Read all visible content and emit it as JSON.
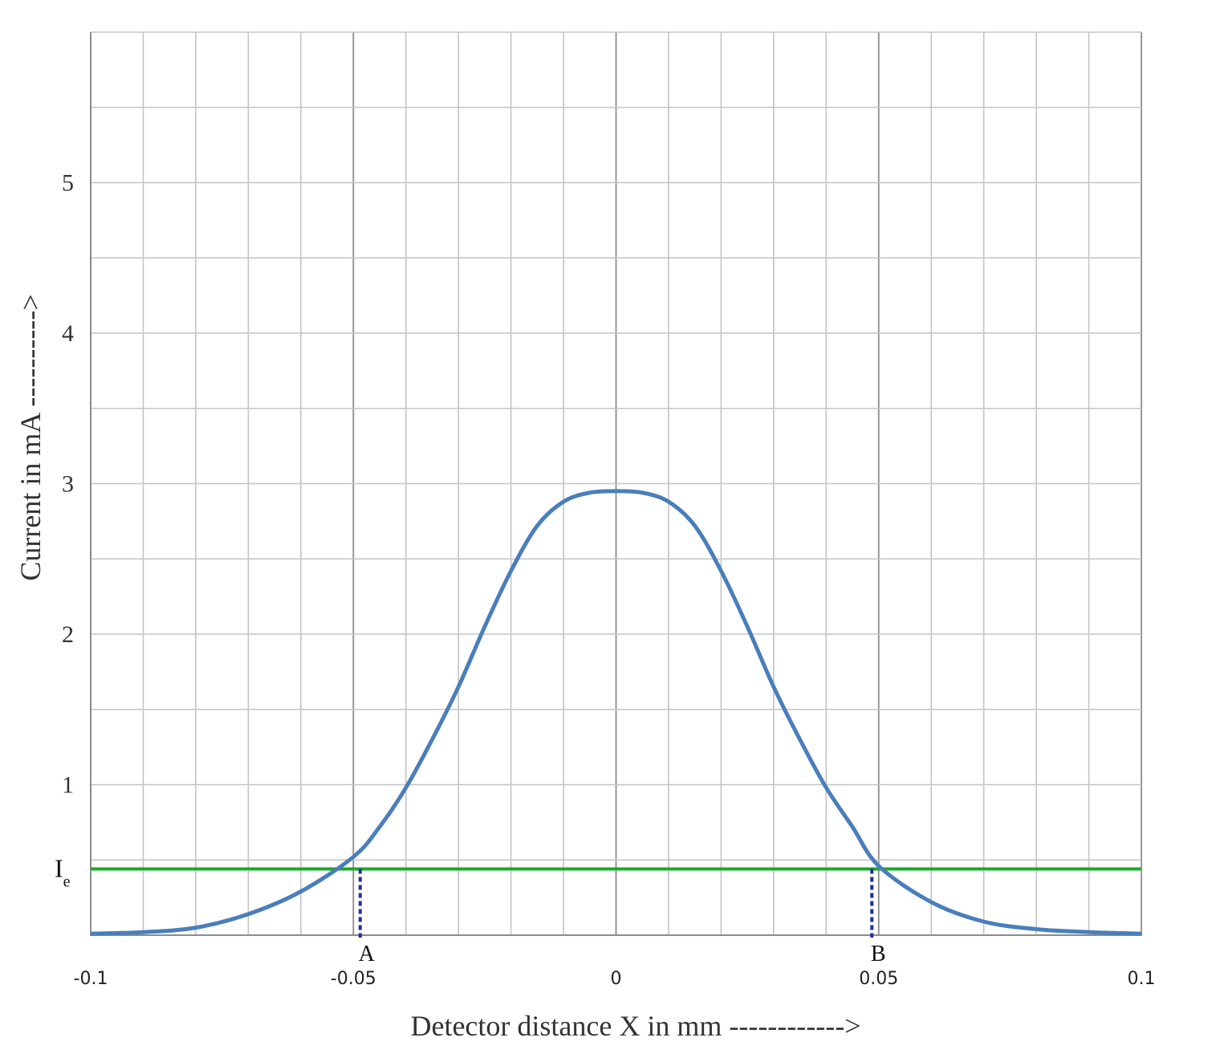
{
  "chart_data": {
    "type": "line",
    "title": "",
    "xlabel": "Detector distance X in mm ------------>",
    "ylabel": "Current in mA ---------->",
    "xlim": [
      -0.1,
      0.1
    ],
    "ylim": [
      -0.05,
      6
    ],
    "x_ticks": [
      "-0.1",
      "-0.05",
      "0",
      "0.05",
      "0.1"
    ],
    "y_ticks": [
      "1",
      "2",
      "3",
      "4",
      "5"
    ],
    "grid": true,
    "series": [
      {
        "color": "#4a7ebb",
        "x": [
          -0.1,
          -0.09,
          -0.08,
          -0.07,
          -0.06,
          -0.05,
          -0.045,
          -0.04,
          -0.035,
          -0.03,
          -0.025,
          -0.02,
          -0.015,
          -0.01,
          -0.005,
          0,
          0.005,
          0.01,
          0.015,
          0.02,
          0.025,
          0.03,
          0.035,
          0.04,
          0.045,
          0.05,
          0.06,
          0.07,
          0.08,
          0.09,
          0.1
        ],
        "y": [
          0.01,
          0.02,
          0.05,
          0.14,
          0.29,
          0.52,
          0.72,
          0.98,
          1.3,
          1.65,
          2.05,
          2.42,
          2.72,
          2.88,
          2.94,
          2.95,
          2.94,
          2.88,
          2.72,
          2.42,
          2.05,
          1.65,
          1.3,
          0.98,
          0.72,
          0.46,
          0.22,
          0.09,
          0.04,
          0.02,
          0.01
        ]
      }
    ],
    "threshold": {
      "y": 0.44,
      "color": "#1aaa2a",
      "label_main": "I",
      "label_sub": "e"
    },
    "markers": [
      {
        "label": "A",
        "x": -0.0487,
        "color": "#1f2d9e"
      },
      {
        "label": "B",
        "x": 0.0487,
        "color": "#1f2d9e"
      }
    ]
  }
}
